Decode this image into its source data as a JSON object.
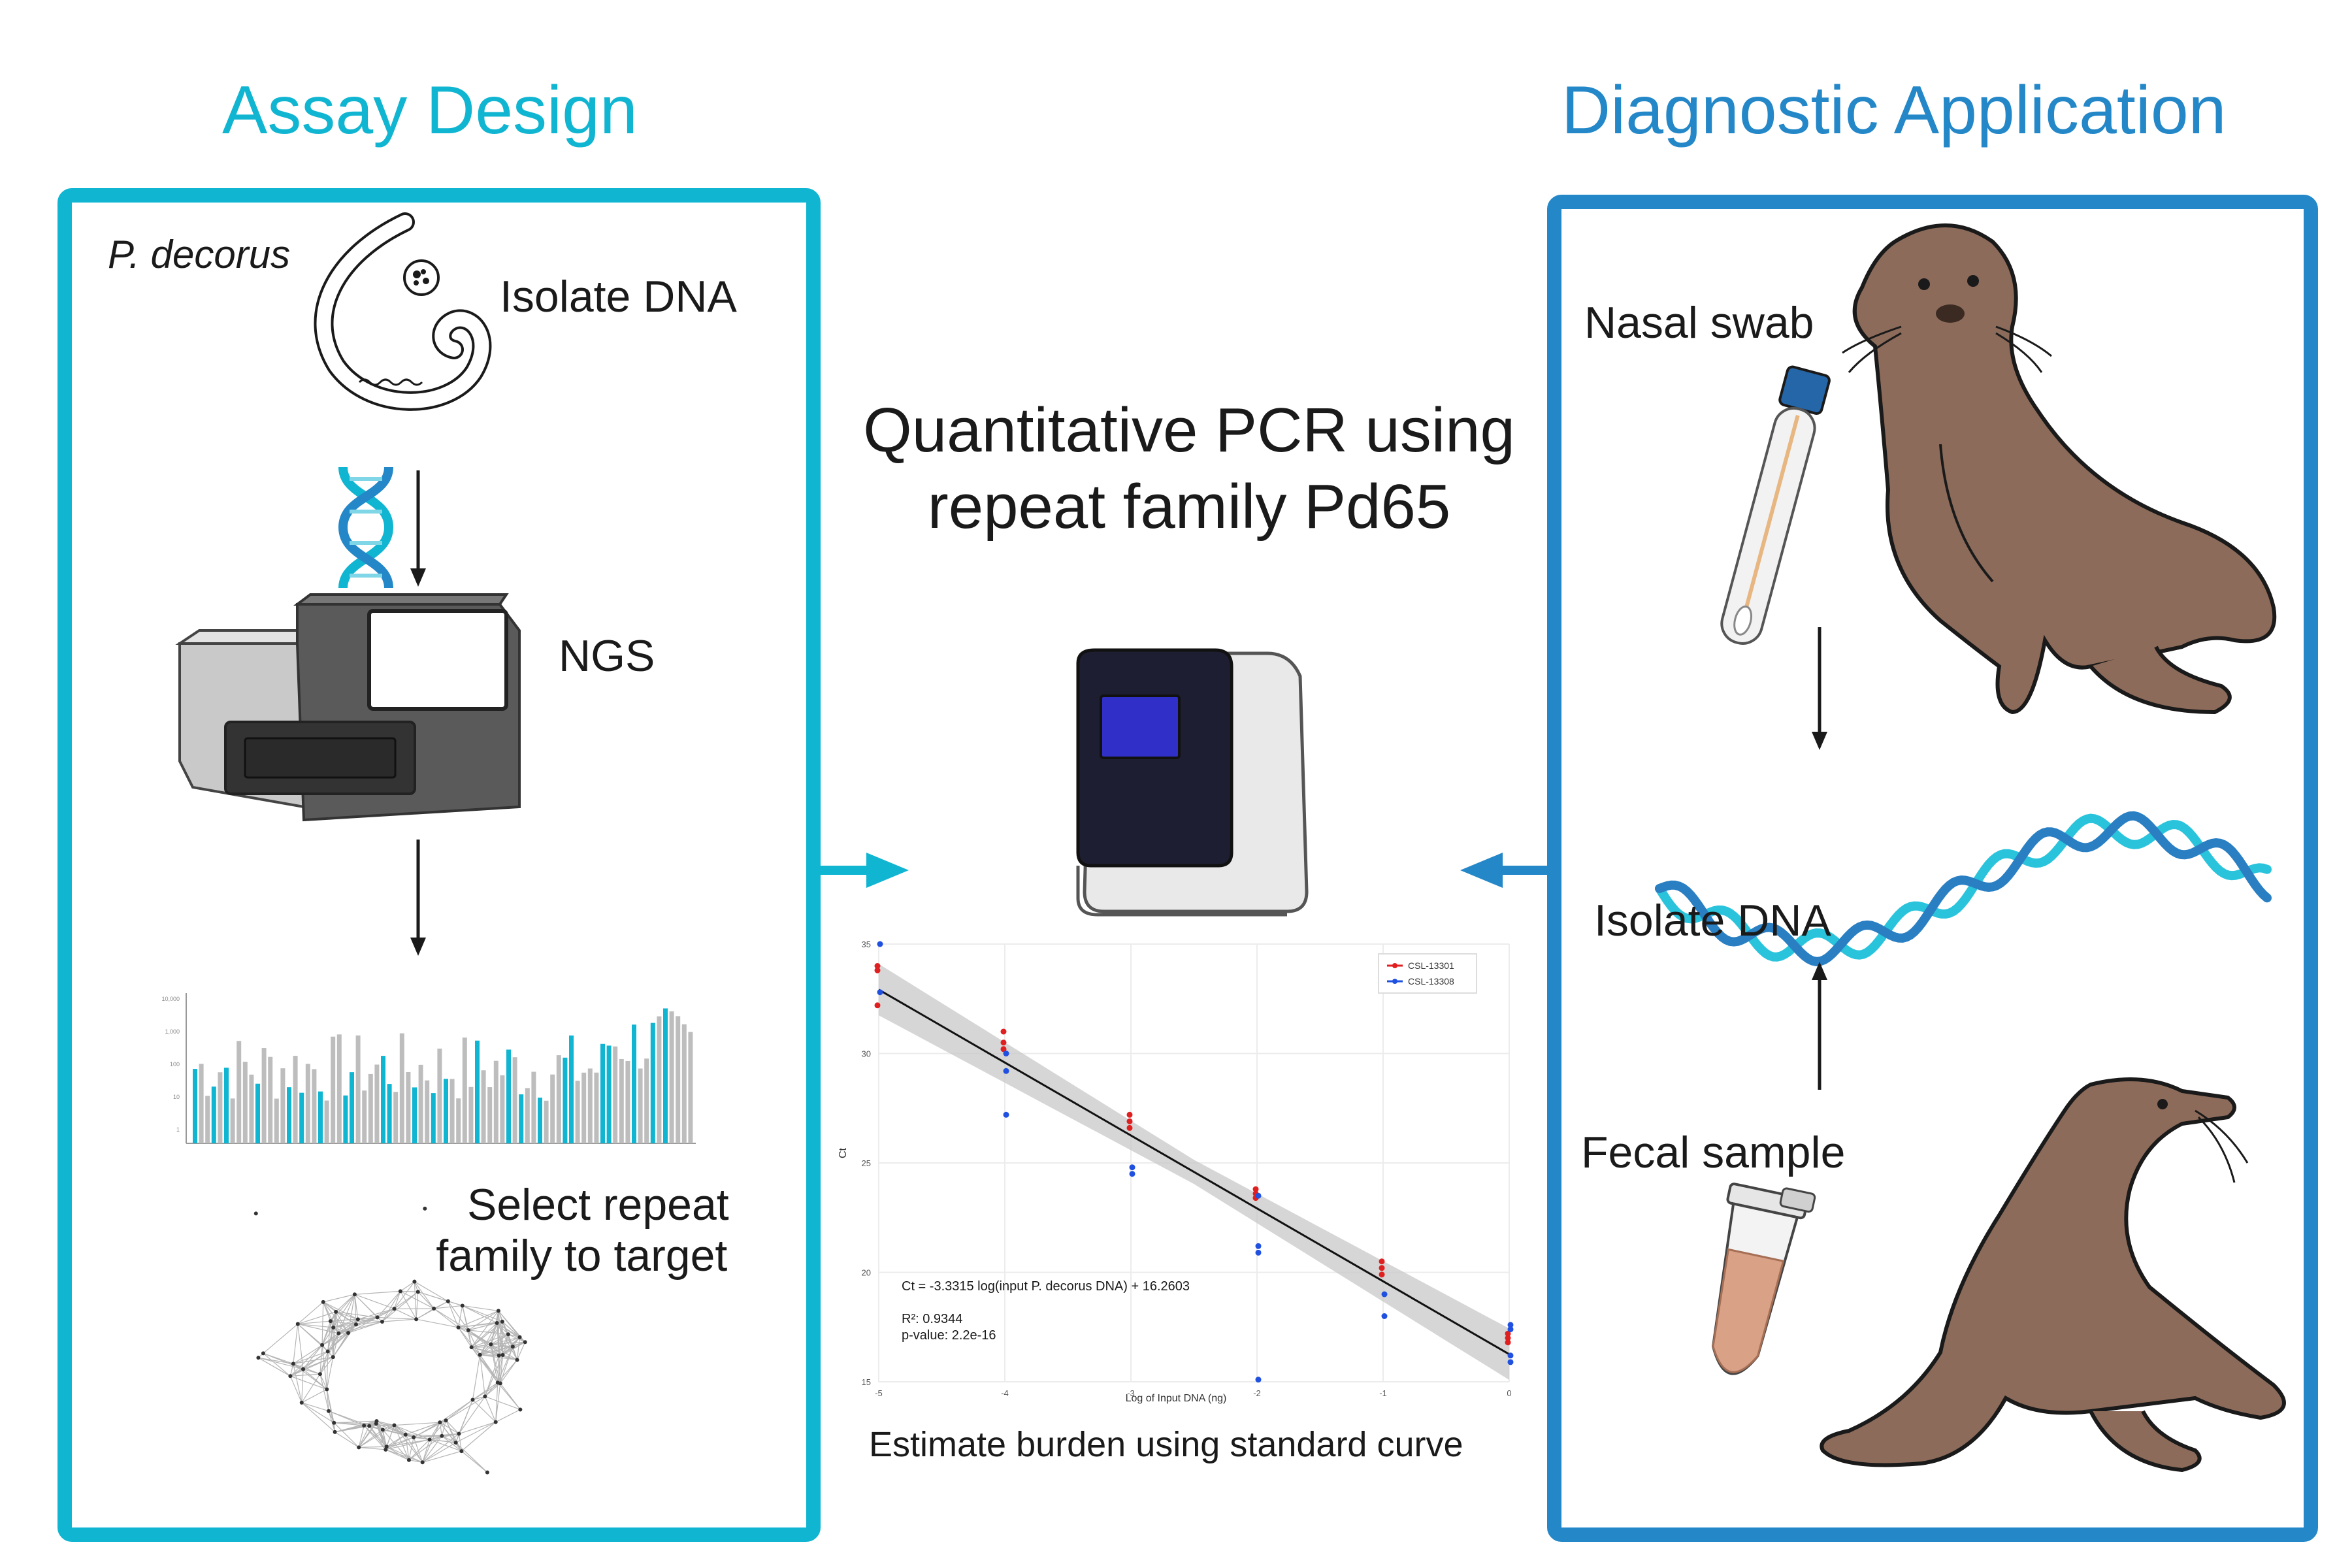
{
  "colors": {
    "assay_accent": "#10b5d1",
    "diagnostic_accent": "#2387c8",
    "seal_fill": "#8c6b5a",
    "dna_light": "#29c4dc",
    "dna_dark": "#2a7fc3",
    "series_red": "#e02020",
    "series_blue": "#2050e0"
  },
  "assay_panel": {
    "heading": "Assay Design",
    "species_label": "P. decorus",
    "isolate_label": "Isolate DNA",
    "ngs_label": "NGS",
    "select_label_line1": "Select repeat",
    "select_label_line2": "family to target",
    "icons": [
      "worm-icon",
      "dna-helix-icon",
      "sequencer-icon",
      "bar-chart-icon",
      "network-graph-icon"
    ]
  },
  "center_panel": {
    "title_line1": "Quantitative PCR using",
    "title_line2": "repeat family Pd65",
    "caption": "Estimate burden using standard curve",
    "icons": [
      "qpcr-machine-icon"
    ]
  },
  "diagnostic_panel": {
    "heading": "Diagnostic Application",
    "nasal_label": "Nasal swab",
    "isolate_label": "Isolate DNA",
    "fecal_label": "Fecal sample",
    "icons": [
      "sea-lion-icon",
      "swab-tube-icon",
      "dna-strand-icon",
      "fecal-tube-icon"
    ]
  },
  "chart_data": {
    "type": "scatter",
    "xlabel": "Log of Input DNA (ng)",
    "ylabel": "Ct",
    "xlim": [
      -5,
      0
    ],
    "ylim": [
      15,
      35
    ],
    "x_ticks": [
      -5,
      -4,
      -3,
      -2,
      -1,
      0
    ],
    "y_ticks": [
      15,
      20,
      25,
      30,
      35
    ],
    "x_tick_labels": [
      "-5",
      "-4",
      "-3",
      "-2",
      "-1",
      "0"
    ],
    "y_tick_labels": [
      "15",
      "20",
      "25",
      "30",
      "35"
    ],
    "grid": true,
    "legend_position": "top-right",
    "equation": "Ct = -3.3315 log(input P. decorus DNA) + 16.2603",
    "r_squared": "R²: 0.9344",
    "p_value": "p-value: 2.2e-16",
    "fit": {
      "slope": -3.3315,
      "intercept": 16.2603
    },
    "series": [
      {
        "name": "CSL-13301",
        "color": "#e02020",
        "points": [
          [
            -5,
            34.0
          ],
          [
            -5,
            33.8
          ],
          [
            -5,
            32.2
          ],
          [
            -4,
            31.0
          ],
          [
            -4,
            30.5
          ],
          [
            -4,
            30.2
          ],
          [
            -3,
            27.2
          ],
          [
            -3,
            26.9
          ],
          [
            -3,
            26.6
          ],
          [
            -2,
            23.8
          ],
          [
            -2,
            23.6
          ],
          [
            -2,
            23.4
          ],
          [
            -1,
            20.5
          ],
          [
            -1,
            20.2
          ],
          [
            -1,
            19.9
          ],
          [
            0,
            17.2
          ],
          [
            0,
            17.0
          ],
          [
            0,
            16.8
          ]
        ]
      },
      {
        "name": "CSL-13308",
        "color": "#2050e0",
        "points": [
          [
            -5,
            35.0
          ],
          [
            -5,
            32.8
          ],
          [
            -4,
            30.0
          ],
          [
            -4,
            29.2
          ],
          [
            -4,
            27.2
          ],
          [
            -3,
            24.8
          ],
          [
            -3,
            24.5
          ],
          [
            -2,
            23.5
          ],
          [
            -2,
            21.2
          ],
          [
            -2,
            20.9
          ],
          [
            -2,
            15.1
          ],
          [
            -1,
            19.0
          ],
          [
            -1,
            18.0
          ],
          [
            0,
            17.6
          ],
          [
            0,
            17.4
          ],
          [
            0,
            16.2
          ],
          [
            0,
            15.9
          ]
        ]
      }
    ]
  }
}
